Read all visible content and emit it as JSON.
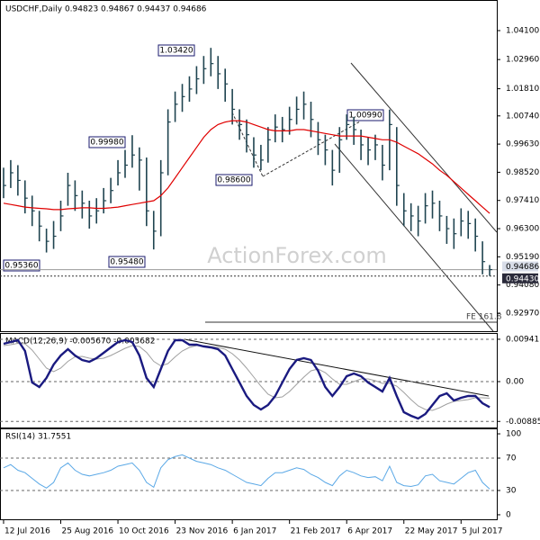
{
  "chart_data": [
    {
      "type": "ohlc",
      "title": "USDCHF,Daily 0.94823 0.94867 0.94437 0.94686",
      "xlim": [
        -0.5,
        69
      ],
      "ylim": [
        0.9226,
        1.0527
      ],
      "color": "#1f4450",
      "high": [
        0.987,
        0.99,
        0.988,
        0.982,
        0.976,
        0.97,
        0.963,
        0.966,
        0.974,
        0.985,
        0.982,
        0.978,
        0.974,
        0.975,
        0.979,
        0.983,
        0.99,
        0.994,
        0.9998,
        0.995,
        0.991,
        0.97,
        0.99,
        1.01,
        1.017,
        1.02,
        1.023,
        1.027,
        1.031,
        1.0342,
        1.031,
        1.026,
        1.018,
        1.01,
        1.006,
        0.999,
        0.996,
        1.003,
        1.008,
        1.007,
        1.011,
        1.015,
        1.017,
        1.013,
        1.005,
        1.0,
        0.994,
        1.003,
        1.008,
        1.007,
        1.002,
        0.999,
        1.0,
        0.996,
        1.0099,
        1.003,
        0.977,
        0.973,
        0.972,
        0.977,
        0.978,
        0.974,
        0.968,
        0.967,
        0.971,
        0.97,
        0.967,
        0.958,
        0.94867
      ],
      "low": [
        0.975,
        0.979,
        0.976,
        0.969,
        0.964,
        0.958,
        0.9536,
        0.955,
        0.962,
        0.972,
        0.97,
        0.967,
        0.963,
        0.965,
        0.969,
        0.973,
        0.98,
        0.983,
        0.987,
        0.978,
        0.964,
        0.9548,
        0.96,
        0.984,
        1.005,
        1.009,
        1.013,
        1.016,
        1.02,
        1.023,
        1.018,
        1.013,
        1.004,
        0.998,
        0.993,
        0.987,
        0.986,
        0.989,
        0.997,
        0.997,
        1.0,
        1.004,
        1.006,
        0.999,
        0.992,
        0.988,
        0.98,
        0.985,
        0.998,
        0.996,
        0.99,
        0.988,
        0.99,
        0.982,
        0.986,
        0.972,
        0.964,
        0.962,
        0.96,
        0.965,
        0.967,
        0.962,
        0.957,
        0.955,
        0.96,
        0.959,
        0.954,
        0.945,
        0.94437
      ],
      "close": [
        0.98,
        0.985,
        0.982,
        0.975,
        0.97,
        0.964,
        0.958,
        0.96,
        0.968,
        0.98,
        0.976,
        0.973,
        0.968,
        0.97,
        0.974,
        0.978,
        0.985,
        0.988,
        0.992,
        0.99,
        0.97,
        0.962,
        0.985,
        1.005,
        1.012,
        1.015,
        1.018,
        1.022,
        1.026,
        1.028,
        1.024,
        1.02,
        1.01,
        1.004,
        1.0,
        0.992,
        0.99,
        0.998,
        1.003,
        1.002,
        1.006,
        1.01,
        1.012,
        1.006,
        0.998,
        0.994,
        0.986,
        0.998,
        1.004,
        1.002,
        0.996,
        0.994,
        0.996,
        0.988,
        1.004,
        0.98,
        0.97,
        0.968,
        0.966,
        0.972,
        0.973,
        0.968,
        0.963,
        0.961,
        0.966,
        0.965,
        0.96,
        0.95,
        0.94686
      ],
      "ma": {
        "color": "#e00000",
        "values": [
          0.973,
          0.9725,
          0.972,
          0.9715,
          0.9712,
          0.971,
          0.9708,
          0.9705,
          0.9705,
          0.9708,
          0.971,
          0.9712,
          0.9712,
          0.971,
          0.971,
          0.9712,
          0.9715,
          0.972,
          0.9725,
          0.973,
          0.9735,
          0.974,
          0.976,
          0.979,
          0.983,
          0.987,
          0.991,
          0.995,
          0.999,
          1.002,
          1.004,
          1.005,
          1.0055,
          1.0055,
          1.005,
          1.004,
          1.003,
          1.002,
          1.0015,
          1.0015,
          1.0015,
          1.002,
          1.002,
          1.0015,
          1.001,
          1.0005,
          1.0,
          0.9995,
          0.9995,
          0.9995,
          0.9995,
          0.999,
          0.9985,
          0.998,
          0.998,
          0.997,
          0.9955,
          0.994,
          0.9925,
          0.9905,
          0.9885,
          0.986,
          0.984,
          0.9815,
          0.979,
          0.9765,
          0.974,
          0.9715,
          0.969
        ]
      },
      "yticks": [
        {
          "value": 1.041,
          "label": "1.04100"
        },
        {
          "value": 1.0296,
          "label": "1.02960"
        },
        {
          "value": 1.0181,
          "label": "1.01810"
        },
        {
          "value": 1.0074,
          "label": "1.00740"
        },
        {
          "value": 0.9963,
          "label": "0.99630"
        },
        {
          "value": 0.9852,
          "label": "0.98520"
        },
        {
          "value": 0.9741,
          "label": "0.97410"
        },
        {
          "value": 0.963,
          "label": "0.96300"
        },
        {
          "value": 0.9519,
          "label": "0.95190"
        },
        {
          "value": 0.9408,
          "label": "0.94080"
        },
        {
          "value": 0.9297,
          "label": "0.92970"
        }
      ],
      "price_markers": [
        {
          "value": 0.94686,
          "label": "0.94686"
        },
        {
          "value": 0.9443,
          "label": "0.94430"
        }
      ],
      "annotations": [
        "1.03420",
        "0.99980",
        "0.98600",
        "0.95360",
        "0.95480",
        "1.00990",
        "FE 161.8"
      ],
      "watermark": "ActionForex.com"
    },
    {
      "type": "macd",
      "title": "MACD(12,26,9) -0.005670 -0.003682",
      "xlim": [
        -0.5,
        69
      ],
      "ylim": [
        -0.0102,
        0.0106
      ],
      "yticks": [
        0.009411,
        {
          "value": 0,
          "label": "0.00"
        },
        -0.008852
      ],
      "series": [
        {
          "color": "#1a1a80",
          "values": [
            0.0084,
            0.0088,
            0.0092,
            0.0068,
            -0.0002,
            -0.0012,
            0.0008,
            0.0038,
            0.0058,
            0.0072,
            0.0058,
            0.0048,
            0.0044,
            0.0052,
            0.0064,
            0.0076,
            0.0088,
            0.0092,
            0.0088,
            0.0058,
            0.0008,
            -0.0012,
            0.0028,
            0.0068,
            0.0092,
            0.0092,
            0.0082,
            0.0082,
            0.0078,
            0.0076,
            0.0072,
            0.0058,
            0.0028,
            -0.0002,
            -0.0032,
            -0.0052,
            -0.0062,
            -0.0052,
            -0.0032,
            -0.0002,
            0.0028,
            0.0048,
            0.0052,
            0.0048,
            0.0024,
            -0.0012,
            -0.0032,
            -0.0012,
            0.0012,
            0.0018,
            0.0012,
            -0.0002,
            -0.0012,
            -0.0022,
            0.0008,
            -0.0032,
            -0.0068,
            -0.0076,
            -0.0082,
            -0.0072,
            -0.0052,
            -0.0032,
            -0.0026,
            -0.0042,
            -0.0036,
            -0.0032,
            -0.0032,
            -0.0048,
            -0.00567
          ]
        },
        {
          "color": "#a0a0a0",
          "values": [
            0.008,
            0.0082,
            0.0085,
            0.0084,
            0.007,
            0.005,
            0.003,
            0.0022,
            0.003,
            0.0045,
            0.0055,
            0.0056,
            0.0052,
            0.005,
            0.0052,
            0.0058,
            0.0066,
            0.0074,
            0.008,
            0.0078,
            0.0065,
            0.0045,
            0.0035,
            0.004,
            0.0055,
            0.0068,
            0.0076,
            0.008,
            0.008,
            0.0078,
            0.0076,
            0.0072,
            0.0062,
            0.0048,
            0.003,
            0.001,
            -0.001,
            -0.0028,
            -0.0036,
            -0.0034,
            -0.0022,
            -0.0006,
            0.001,
            0.0024,
            0.0028,
            0.002,
            0.0006,
            -0.0006,
            -0.0006,
            0.0,
            0.0006,
            0.0006,
            0.0002,
            -0.0004,
            -0.0004,
            -0.001,
            -0.0024,
            -0.004,
            -0.0054,
            -0.0062,
            -0.0064,
            -0.0058,
            -0.005,
            -0.0044,
            -0.0042,
            -0.004,
            -0.0036,
            -0.0036,
            -0.003682
          ]
        }
      ]
    },
    {
      "type": "rsi",
      "title": "RSI(14) 31.7551",
      "xlim": [
        -0.5,
        69
      ],
      "ylim": [
        -5.6,
        105.6
      ],
      "yticks": [
        100,
        70,
        30,
        0
      ],
      "xticks": [
        {
          "value": 0,
          "label": "12 Jul 2016"
        },
        {
          "value": 8,
          "label": "25 Aug 2016"
        },
        {
          "value": 16,
          "label": "10 Oct 2016"
        },
        {
          "value": 24,
          "label": "23 Nov 2016"
        },
        {
          "value": 32,
          "label": "6 Jan 2017"
        },
        {
          "value": 40,
          "label": "21 Feb 2017"
        },
        {
          "value": 48,
          "label": "6 Apr 2017"
        },
        {
          "value": 56,
          "label": "22 May 2017"
        },
        {
          "value": 64,
          "label": "5 Jul 2017"
        }
      ],
      "series": [
        {
          "color": "#5aa8e6",
          "values": [
            58,
            62,
            55,
            52,
            45,
            38,
            33,
            40,
            58,
            64,
            55,
            50,
            48,
            50,
            52,
            55,
            60,
            62,
            64,
            55,
            40,
            34,
            58,
            68,
            72,
            74,
            70,
            66,
            64,
            62,
            58,
            55,
            50,
            45,
            40,
            38,
            36,
            45,
            52,
            52,
            55,
            58,
            56,
            50,
            46,
            40,
            36,
            48,
            55,
            52,
            48,
            46,
            47,
            42,
            60,
            40,
            36,
            35,
            37,
            48,
            50,
            42,
            40,
            38,
            45,
            52,
            55,
            40,
            31.7551
          ]
        }
      ]
    }
  ]
}
